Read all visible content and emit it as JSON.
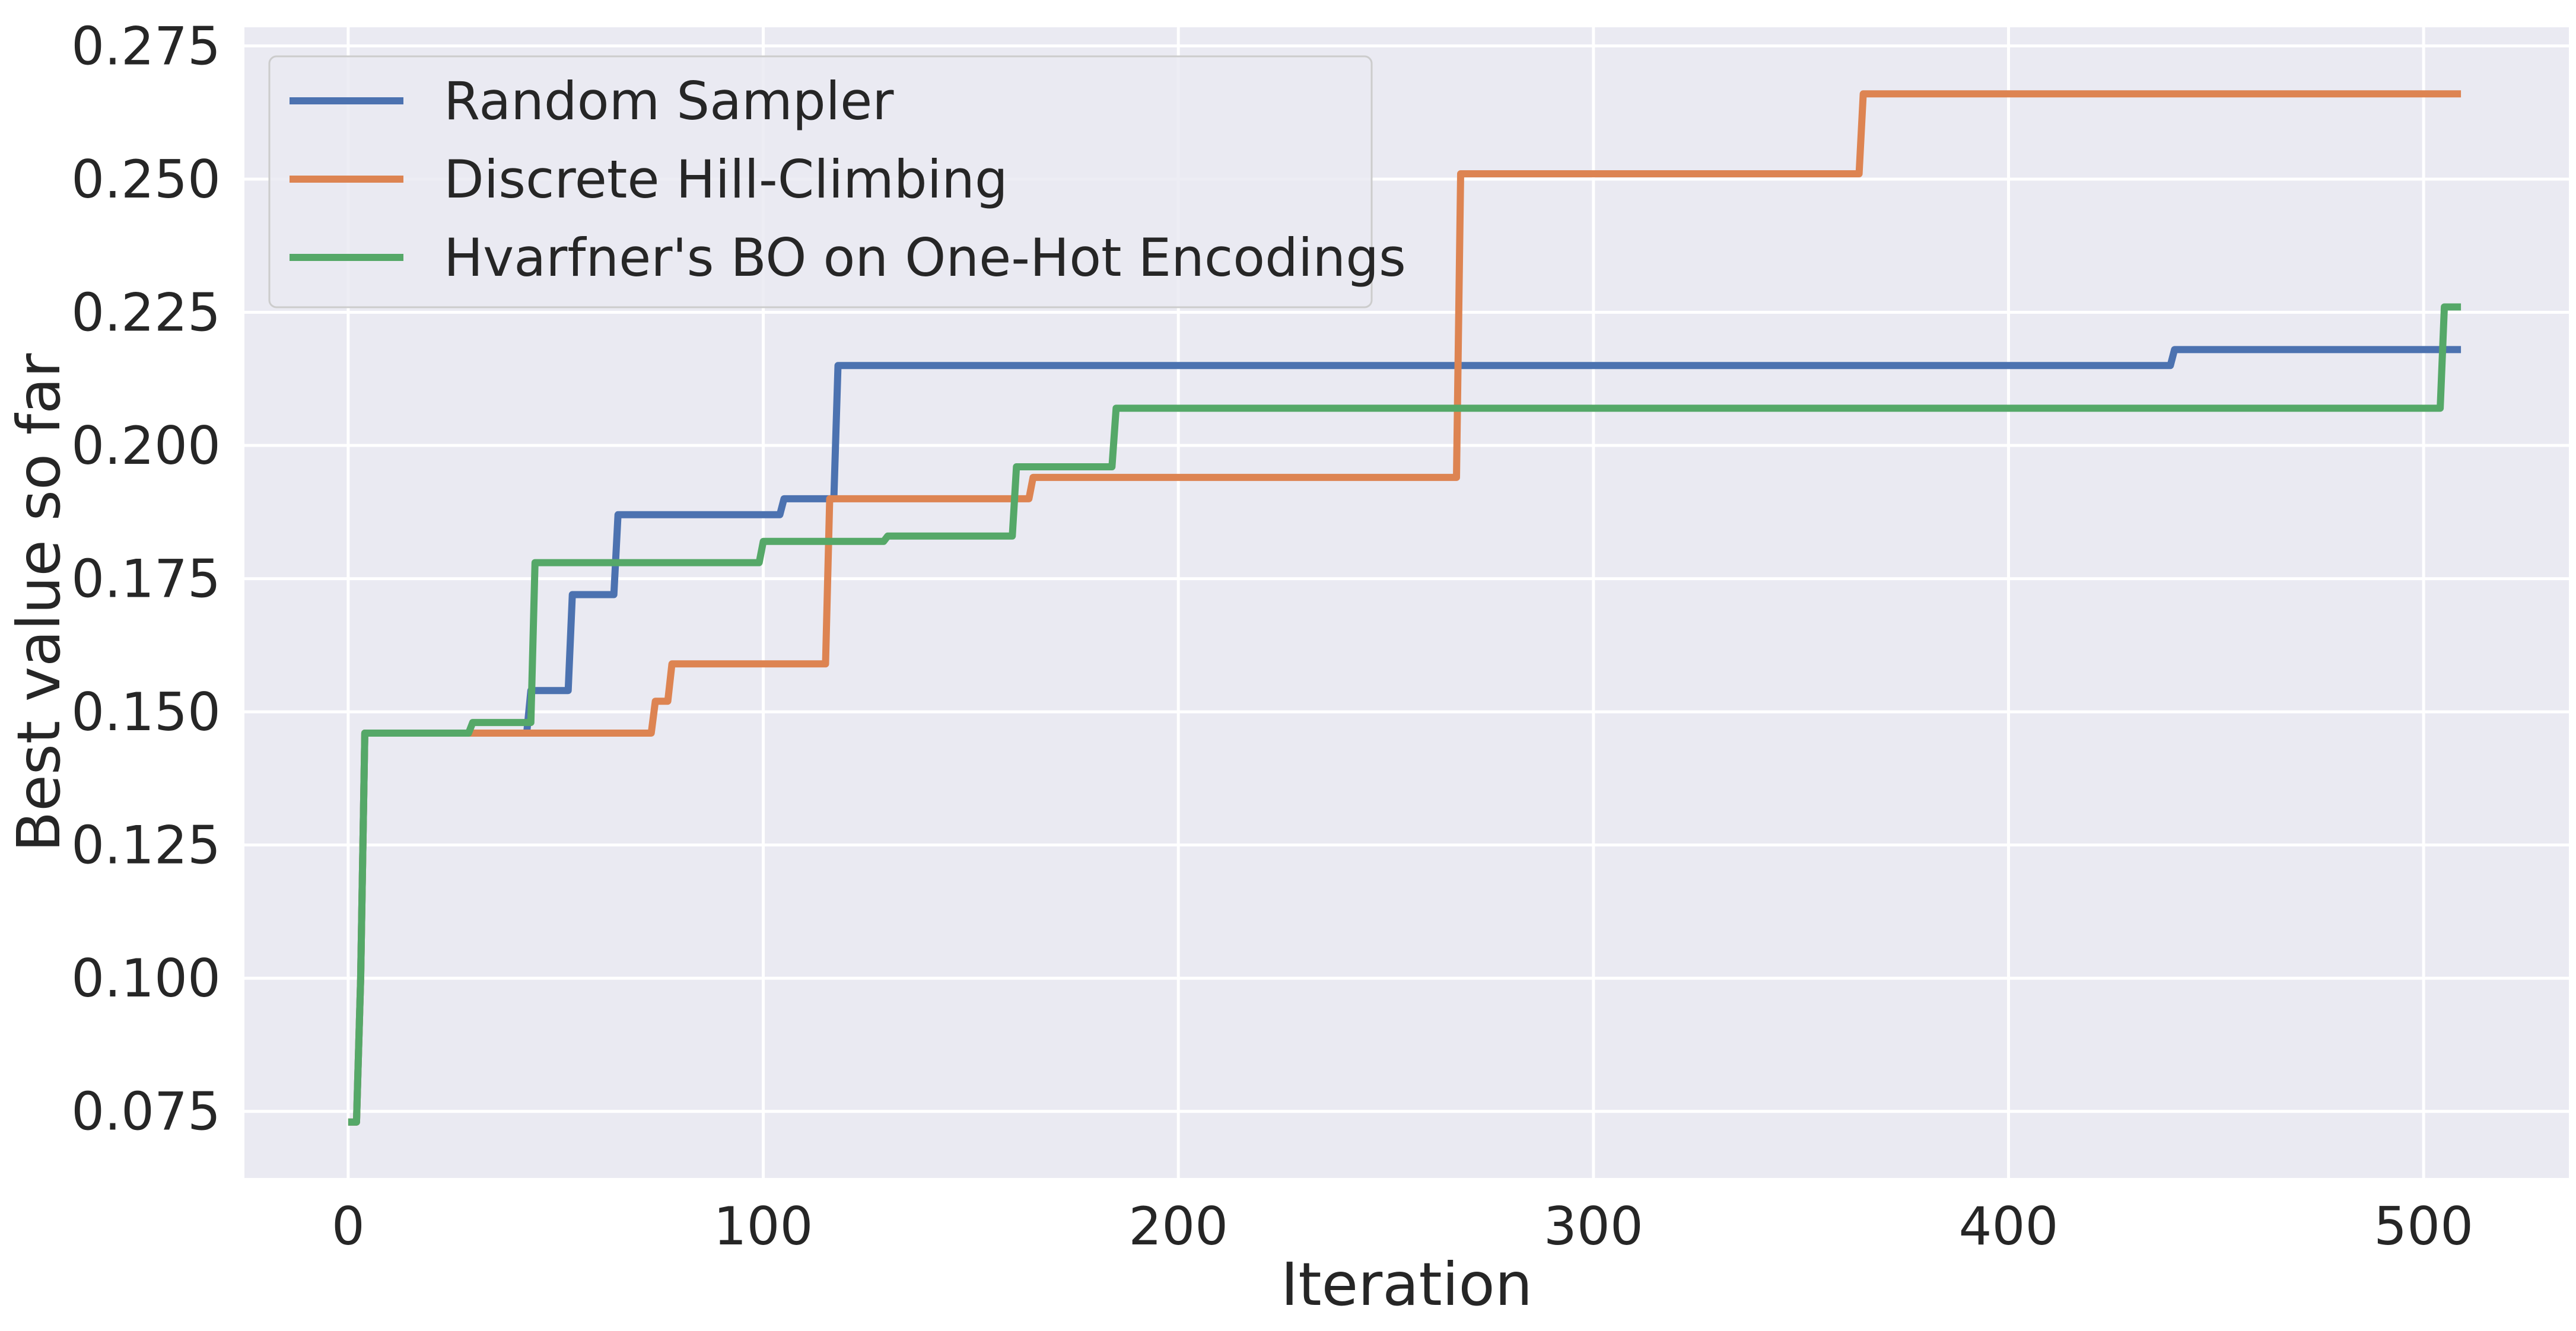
{
  "chart_data": {
    "type": "line",
    "step": true,
    "title": "",
    "xlabel": "Iteration",
    "ylabel": "Best value so far",
    "xlim": [
      -25,
      535
    ],
    "ylim": [
      0.0625,
      0.2785
    ],
    "xticks": [
      0,
      100,
      200,
      300,
      400,
      500
    ],
    "yticks": [
      0.075,
      0.1,
      0.125,
      0.15,
      0.175,
      0.2,
      0.225,
      0.25,
      0.275
    ],
    "xtick_labels": [
      "0",
      "100",
      "200",
      "300",
      "400",
      "500"
    ],
    "ytick_labels": [
      "0.075",
      "0.100",
      "0.125",
      "0.150",
      "0.175",
      "0.200",
      "0.225",
      "0.250",
      "0.275"
    ],
    "grid": true,
    "legend_position": "top-left",
    "series": [
      {
        "name": "Random Sampler",
        "color": "#4c72b0",
        "points": [
          [
            0,
            0.073
          ],
          [
            2,
            0.073
          ],
          [
            3,
            0.1
          ],
          [
            4,
            0.146
          ],
          [
            43,
            0.146
          ],
          [
            44,
            0.154
          ],
          [
            53,
            0.154
          ],
          [
            54,
            0.172
          ],
          [
            64,
            0.172
          ],
          [
            65,
            0.187
          ],
          [
            104,
            0.187
          ],
          [
            105,
            0.19
          ],
          [
            117,
            0.19
          ],
          [
            118,
            0.215
          ],
          [
            439,
            0.215
          ],
          [
            440,
            0.218
          ],
          [
            509,
            0.218
          ]
        ]
      },
      {
        "name": "Discrete Hill-Climbing",
        "color": "#dd8452",
        "points": [
          [
            0,
            0.073
          ],
          [
            2,
            0.073
          ],
          [
            3,
            0.1
          ],
          [
            4,
            0.146
          ],
          [
            73,
            0.146
          ],
          [
            74,
            0.152
          ],
          [
            77,
            0.152
          ],
          [
            78,
            0.159
          ],
          [
            115,
            0.159
          ],
          [
            116,
            0.19
          ],
          [
            164,
            0.19
          ],
          [
            165,
            0.194
          ],
          [
            267,
            0.194
          ],
          [
            268,
            0.251
          ],
          [
            364,
            0.251
          ],
          [
            365,
            0.266
          ],
          [
            509,
            0.266
          ]
        ]
      },
      {
        "name": "Hvarfner's BO on One-Hot Encodings",
        "color": "#55a868",
        "points": [
          [
            0,
            0.073
          ],
          [
            2,
            0.073
          ],
          [
            3,
            0.1
          ],
          [
            4,
            0.146
          ],
          [
            29,
            0.146
          ],
          [
            30,
            0.148
          ],
          [
            44,
            0.148
          ],
          [
            45,
            0.178
          ],
          [
            99,
            0.178
          ],
          [
            100,
            0.182
          ],
          [
            129,
            0.182
          ],
          [
            130,
            0.183
          ],
          [
            160,
            0.183
          ],
          [
            161,
            0.196
          ],
          [
            184,
            0.196
          ],
          [
            185,
            0.207
          ],
          [
            504,
            0.207
          ],
          [
            505,
            0.226
          ],
          [
            509,
            0.226
          ]
        ]
      }
    ]
  }
}
